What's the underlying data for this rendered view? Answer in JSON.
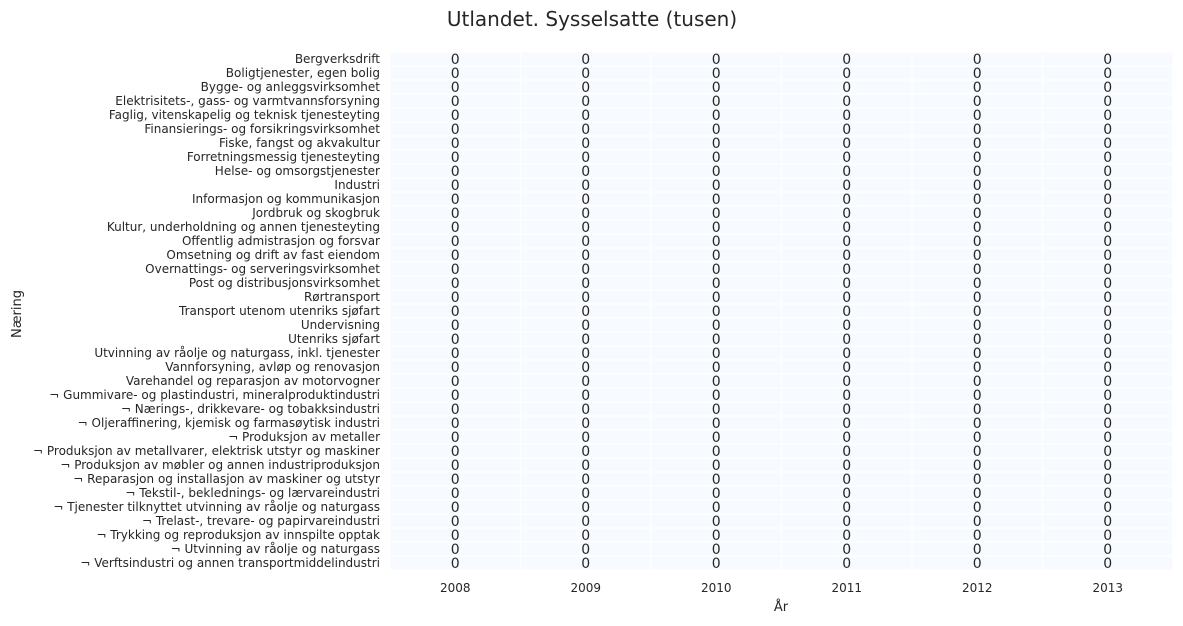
{
  "chart_data": {
    "type": "heatmap",
    "title": "Utlandet. Sysselsatte (tusen)",
    "xlabel": "År",
    "ylabel": "Næring",
    "x": [
      "2008",
      "2009",
      "2010",
      "2011",
      "2012",
      "2013"
    ],
    "y": [
      "Bergverksdrift",
      "Boligtjenester, egen bolig",
      "Bygge- og anleggsvirksomhet",
      "Elektrisitets-, gass- og varmtvannsforsyning",
      "Faglig, vitenskapelig og teknisk tjenesteyting",
      "Finansierings- og forsikringsvirksomhet",
      "Fiske, fangst og akvakultur",
      "Forretningsmessig tjenesteyting",
      "Helse- og omsorgstjenester",
      "Industri",
      "Informasjon og kommunikasjon",
      "Jordbruk og skogbruk",
      "Kultur, underholdning og annen tjenesteyting",
      "Offentlig admistrasjon og forsvar",
      "Omsetning og drift av fast eiendom",
      "Overnattings- og serveringsvirksomhet",
      "Post og distribusjonsvirksomhet",
      "Rørtransport",
      "Transport utenom utenriks sjøfart",
      "Undervisning",
      "Utenriks sjøfart",
      "Utvinning av råolje og naturgass, inkl. tjenester",
      "Vannforsyning, avløp og renovasjon",
      "Varehandel og reparasjon av motorvogner",
      "¬ Gummivare- og plastindustri, mineralproduktindustri",
      "¬ Nærings-, drikkevare- og tobakksindustri",
      "¬ Oljeraffinering, kjemisk og farmasøytisk industri",
      "¬ Produksjon av metaller",
      "¬ Produksjon av metallvarer, elektrisk utstyr og maskiner",
      "¬ Produksjon av møbler og annen industriproduksjon",
      "¬ Reparasjon og installasjon av maskiner og utstyr",
      "¬ Tekstil-, beklednings- og lærvareindustri",
      "¬ Tjenester tilknyttet utvinning av råolje og naturgass",
      "¬ Trelast-, trevare- og papirvareindustri",
      "¬ Trykking og reproduksjon av innspilte opptak",
      "¬ Utvinning av råolje og naturgass",
      "¬ Verftsindustri og annen transportmiddelindustri"
    ],
    "values": [
      [
        0,
        0,
        0,
        0,
        0,
        0
      ],
      [
        0,
        0,
        0,
        0,
        0,
        0
      ],
      [
        0,
        0,
        0,
        0,
        0,
        0
      ],
      [
        0,
        0,
        0,
        0,
        0,
        0
      ],
      [
        0,
        0,
        0,
        0,
        0,
        0
      ],
      [
        0,
        0,
        0,
        0,
        0,
        0
      ],
      [
        0,
        0,
        0,
        0,
        0,
        0
      ],
      [
        0,
        0,
        0,
        0,
        0,
        0
      ],
      [
        0,
        0,
        0,
        0,
        0,
        0
      ],
      [
        0,
        0,
        0,
        0,
        0,
        0
      ],
      [
        0,
        0,
        0,
        0,
        0,
        0
      ],
      [
        0,
        0,
        0,
        0,
        0,
        0
      ],
      [
        0,
        0,
        0,
        0,
        0,
        0
      ],
      [
        0,
        0,
        0,
        0,
        0,
        0
      ],
      [
        0,
        0,
        0,
        0,
        0,
        0
      ],
      [
        0,
        0,
        0,
        0,
        0,
        0
      ],
      [
        0,
        0,
        0,
        0,
        0,
        0
      ],
      [
        0,
        0,
        0,
        0,
        0,
        0
      ],
      [
        0,
        0,
        0,
        0,
        0,
        0
      ],
      [
        0,
        0,
        0,
        0,
        0,
        0
      ],
      [
        0,
        0,
        0,
        0,
        0,
        0
      ],
      [
        0,
        0,
        0,
        0,
        0,
        0
      ],
      [
        0,
        0,
        0,
        0,
        0,
        0
      ],
      [
        0,
        0,
        0,
        0,
        0,
        0
      ],
      [
        0,
        0,
        0,
        0,
        0,
        0
      ],
      [
        0,
        0,
        0,
        0,
        0,
        0
      ],
      [
        0,
        0,
        0,
        0,
        0,
        0
      ],
      [
        0,
        0,
        0,
        0,
        0,
        0
      ],
      [
        0,
        0,
        0,
        0,
        0,
        0
      ],
      [
        0,
        0,
        0,
        0,
        0,
        0
      ],
      [
        0,
        0,
        0,
        0,
        0,
        0
      ],
      [
        0,
        0,
        0,
        0,
        0,
        0
      ],
      [
        0,
        0,
        0,
        0,
        0,
        0
      ],
      [
        0,
        0,
        0,
        0,
        0,
        0
      ],
      [
        0,
        0,
        0,
        0,
        0,
        0
      ],
      [
        0,
        0,
        0,
        0,
        0,
        0
      ],
      [
        0,
        0,
        0,
        0,
        0,
        0
      ]
    ],
    "annotated": true,
    "colors": {
      "cell_fill": "#f7fbff",
      "cell_border": "#ffffff",
      "annotation": "#262626"
    }
  }
}
